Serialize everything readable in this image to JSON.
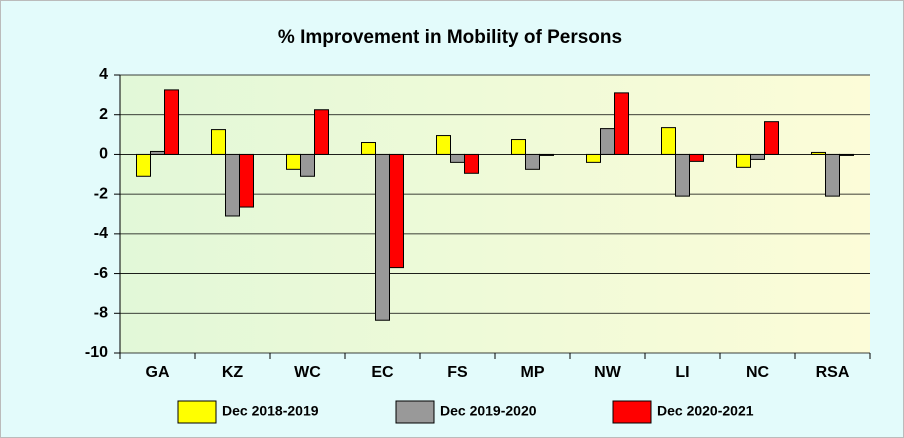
{
  "chart_data": {
    "type": "bar",
    "title": "% Improvement in Mobility of Persons",
    "categories": [
      "GA",
      "KZ",
      "WC",
      "EC",
      "FS",
      "MP",
      "NW",
      "LI",
      "NC",
      "RSA"
    ],
    "series": [
      {
        "name": "Dec 2018-2019",
        "color": "#ffff00",
        "values": [
          -1.1,
          1.25,
          -0.75,
          0.6,
          0.95,
          0.75,
          -0.4,
          1.35,
          -0.65,
          0.1
        ]
      },
      {
        "name": "Dec 2019-2020",
        "color": "#999999",
        "values": [
          0.15,
          -3.1,
          -1.1,
          -8.35,
          -0.4,
          -0.75,
          1.3,
          -2.1,
          -0.25,
          -2.1
        ]
      },
      {
        "name": "Dec 2020-2021",
        "color": "#ff0000",
        "values": [
          3.25,
          -2.65,
          2.25,
          -5.7,
          -0.95,
          -0.05,
          3.1,
          -0.35,
          1.65,
          -0.05
        ]
      }
    ],
    "ylim": [
      -10,
      4
    ],
    "yticks": [
      -10,
      -8,
      -6,
      -4,
      -2,
      0,
      2,
      4
    ],
    "grid": true,
    "legend": "bottom"
  }
}
